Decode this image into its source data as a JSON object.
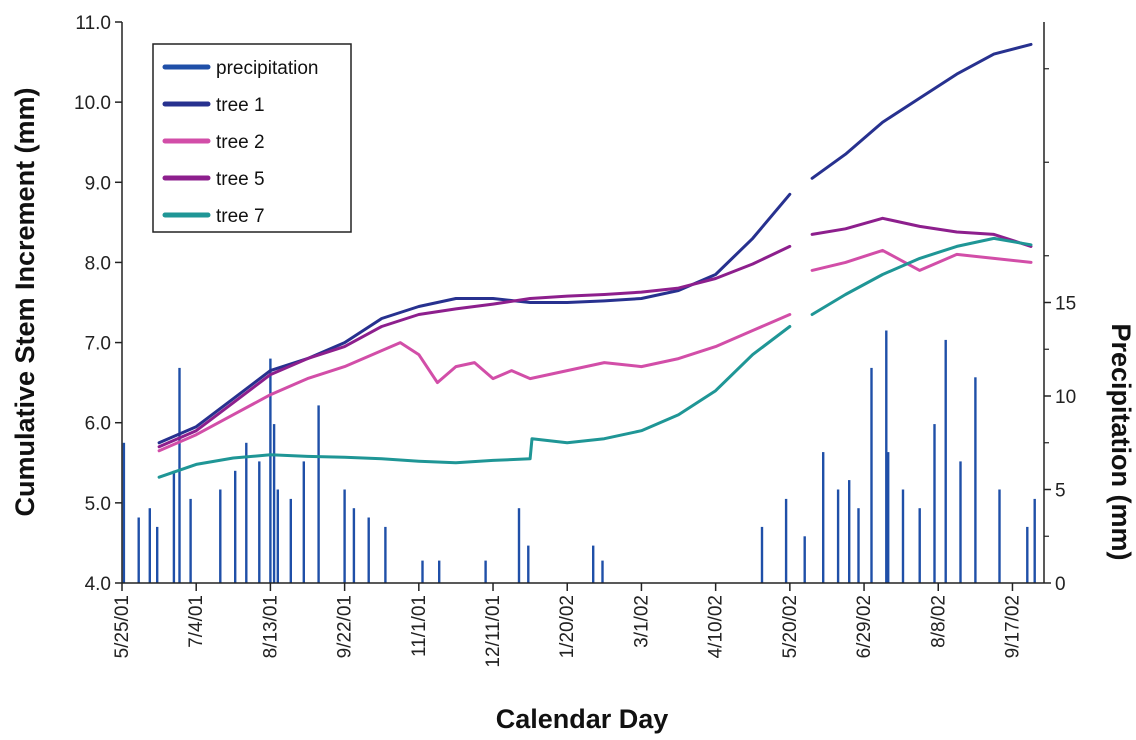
{
  "chart_data": {
    "type": "line",
    "xlabel": "Calendar Day",
    "ylabel_left": "Cumulative Stem Increment (mm)",
    "ylabel_right": "Precipitation (mm)",
    "x_start": "5/25/01",
    "x_end": "10/4/02",
    "x_ticks": [
      "5/25/01",
      "7/4/01",
      "8/13/01",
      "9/22/01",
      "11/1/01",
      "12/11/01",
      "1/20/02",
      "3/1/02",
      "4/10/02",
      "5/20/02",
      "6/29/02",
      "8/8/02",
      "9/17/02"
    ],
    "y_left_ticks": [
      "4.0",
      "5.0",
      "6.0",
      "7.0",
      "8.0",
      "9.0",
      "10.0",
      "11.0"
    ],
    "y_left_lim": [
      4.0,
      11.0
    ],
    "y_right_ticks": [
      "0",
      "5",
      "10",
      "15"
    ],
    "y_right_lim": [
      0,
      30
    ],
    "grid": false,
    "legend_position": "top-left",
    "gap": [
      "5/21/02",
      "5/31/02"
    ],
    "series": [
      {
        "name": "tree 1",
        "color": "#27318f",
        "x": [
          "6/14/01",
          "7/4/01",
          "7/24/01",
          "8/13/01",
          "9/2/01",
          "9/22/01",
          "10/12/01",
          "11/1/01",
          "11/21/01",
          "12/11/01",
          "12/31/01",
          "1/20/02",
          "2/9/02",
          "3/1/02",
          "3/21/02",
          "4/10/02",
          "4/30/02",
          "5/20/02",
          "6/1/02",
          "6/19/02",
          "7/9/02",
          "7/29/02",
          "8/18/02",
          "9/7/02",
          "9/27/02"
        ],
        "y": [
          5.75,
          5.95,
          6.3,
          6.65,
          6.8,
          7.0,
          7.3,
          7.45,
          7.55,
          7.55,
          7.5,
          7.5,
          7.52,
          7.55,
          7.65,
          7.85,
          8.3,
          8.85,
          9.05,
          9.35,
          9.75,
          10.05,
          10.35,
          10.6,
          10.72
        ]
      },
      {
        "name": "tree 2",
        "color": "#d24ea8",
        "x": [
          "6/14/01",
          "7/4/01",
          "7/24/01",
          "8/13/01",
          "9/2/01",
          "9/22/01",
          "10/12/01",
          "10/22/01",
          "11/1/01",
          "11/11/01",
          "11/21/01",
          "12/1/01",
          "12/11/01",
          "12/21/01",
          "12/31/01",
          "1/20/02",
          "2/9/02",
          "3/1/02",
          "3/21/02",
          "4/10/02",
          "4/30/02",
          "5/20/02",
          "6/1/02",
          "6/19/02",
          "7/9/02",
          "7/29/02",
          "8/18/02",
          "9/7/02",
          "9/27/02"
        ],
        "y": [
          5.65,
          5.85,
          6.1,
          6.35,
          6.55,
          6.7,
          6.9,
          7.0,
          6.85,
          6.5,
          6.7,
          6.75,
          6.55,
          6.65,
          6.55,
          6.65,
          6.75,
          6.7,
          6.8,
          6.95,
          7.15,
          7.35,
          7.9,
          8.0,
          8.15,
          7.9,
          8.1,
          8.05,
          8.0
        ]
      },
      {
        "name": "tree 5",
        "color": "#8d1f8d",
        "x": [
          "6/14/01",
          "7/4/01",
          "7/24/01",
          "8/13/01",
          "9/2/01",
          "9/22/01",
          "10/12/01",
          "11/1/01",
          "11/21/01",
          "12/11/01",
          "12/31/01",
          "1/20/02",
          "2/9/02",
          "3/1/02",
          "3/21/02",
          "4/10/02",
          "4/30/02",
          "5/20/02",
          "6/1/02",
          "6/19/02",
          "7/9/02",
          "7/29/02",
          "8/18/02",
          "9/7/02",
          "9/27/02"
        ],
        "y": [
          5.7,
          5.9,
          6.25,
          6.6,
          6.8,
          6.95,
          7.2,
          7.35,
          7.42,
          7.48,
          7.55,
          7.58,
          7.6,
          7.63,
          7.68,
          7.8,
          7.98,
          8.2,
          8.35,
          8.42,
          8.55,
          8.45,
          8.38,
          8.35,
          8.2
        ]
      },
      {
        "name": "tree 7",
        "color": "#1f9696",
        "x": [
          "6/14/01",
          "7/4/01",
          "7/24/01",
          "8/13/01",
          "9/2/01",
          "9/22/01",
          "10/12/01",
          "11/1/01",
          "11/21/01",
          "12/11/01",
          "12/31/01",
          "1/1/02",
          "1/20/02",
          "2/9/02",
          "3/1/02",
          "3/21/02",
          "4/10/02",
          "4/30/02",
          "5/20/02",
          "6/1/02",
          "6/19/02",
          "7/9/02",
          "7/29/02",
          "8/18/02",
          "9/7/02",
          "9/27/02"
        ],
        "y": [
          5.32,
          5.48,
          5.56,
          5.6,
          5.58,
          5.57,
          5.55,
          5.52,
          5.5,
          5.53,
          5.55,
          5.8,
          5.75,
          5.8,
          5.9,
          6.1,
          6.4,
          6.85,
          7.2,
          7.35,
          7.6,
          7.85,
          8.05,
          8.2,
          8.3,
          8.22
        ]
      }
    ],
    "precipitation": {
      "name": "precipitation",
      "color": "#1f4fa8",
      "x": [
        "5/26/01",
        "6/3/01",
        "6/9/01",
        "6/13/01",
        "6/22/01",
        "6/25/01",
        "7/1/01",
        "7/17/01",
        "7/25/01",
        "7/31/01",
        "8/7/01",
        "8/13/01",
        "8/15/01",
        "8/17/01",
        "8/24/01",
        "8/31/01",
        "9/8/01",
        "9/22/01",
        "9/27/01",
        "10/5/01",
        "10/14/01",
        "11/3/01",
        "11/12/01",
        "12/7/01",
        "12/25/01",
        "12/30/01",
        "2/3/02",
        "2/8/02",
        "5/5/02",
        "5/18/02",
        "5/28/02",
        "6/7/02",
        "6/15/02",
        "6/21/02",
        "6/26/02",
        "7/3/02",
        "7/11/02",
        "7/12/02",
        "7/20/02",
        "7/29/02",
        "8/6/02",
        "8/12/02",
        "8/20/02",
        "8/28/02",
        "9/10/02",
        "9/25/02",
        "9/29/02"
      ],
      "values": [
        7.5,
        3.5,
        4.0,
        3.0,
        6.0,
        11.5,
        4.5,
        5.0,
        6.0,
        7.5,
        6.5,
        12.0,
        8.5,
        5.0,
        4.5,
        6.5,
        9.5,
        5.0,
        4.0,
        3.5,
        3.0,
        1.2,
        1.2,
        1.2,
        4.0,
        2.0,
        2.0,
        1.2,
        3.0,
        4.5,
        2.5,
        7.0,
        5.0,
        5.5,
        4.0,
        11.5,
        13.5,
        7.0,
        5.0,
        4.0,
        8.5,
        13.0,
        6.5,
        11.0,
        5.0,
        3.0,
        4.5
      ]
    }
  }
}
